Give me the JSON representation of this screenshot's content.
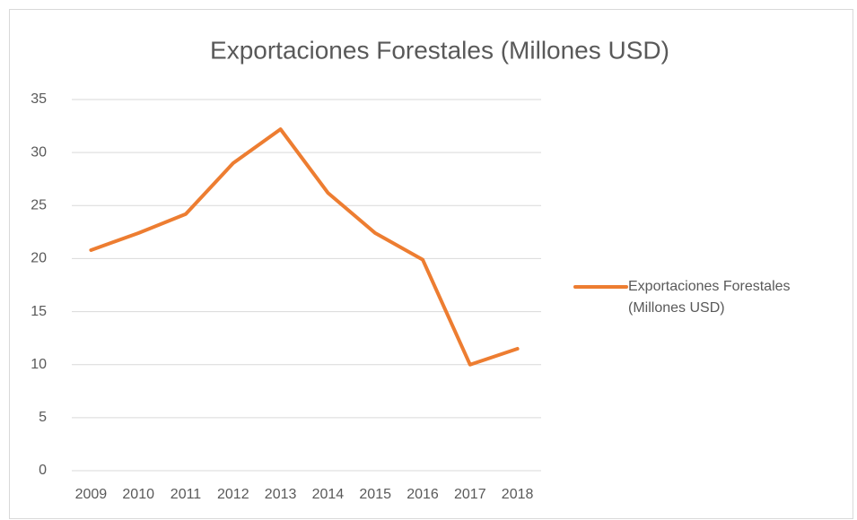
{
  "chart_data": {
    "type": "line",
    "title": "Exportaciones Forestales (Millones USD)",
    "categories": [
      "2009",
      "2010",
      "2011",
      "2012",
      "2013",
      "2014",
      "2015",
      "2016",
      "2017",
      "2018"
    ],
    "series": [
      {
        "name": "Exportaciones Forestales (Millones USD)",
        "color": "#ed7d31",
        "values": [
          20.8,
          22.4,
          24.2,
          29.0,
          32.2,
          26.2,
          22.4,
          19.9,
          10.0,
          11.5
        ]
      }
    ],
    "ylim": [
      0,
      35
    ],
    "yticks": [
      0,
      5,
      10,
      15,
      20,
      25,
      30,
      35
    ],
    "grid": true,
    "legend": "right"
  }
}
